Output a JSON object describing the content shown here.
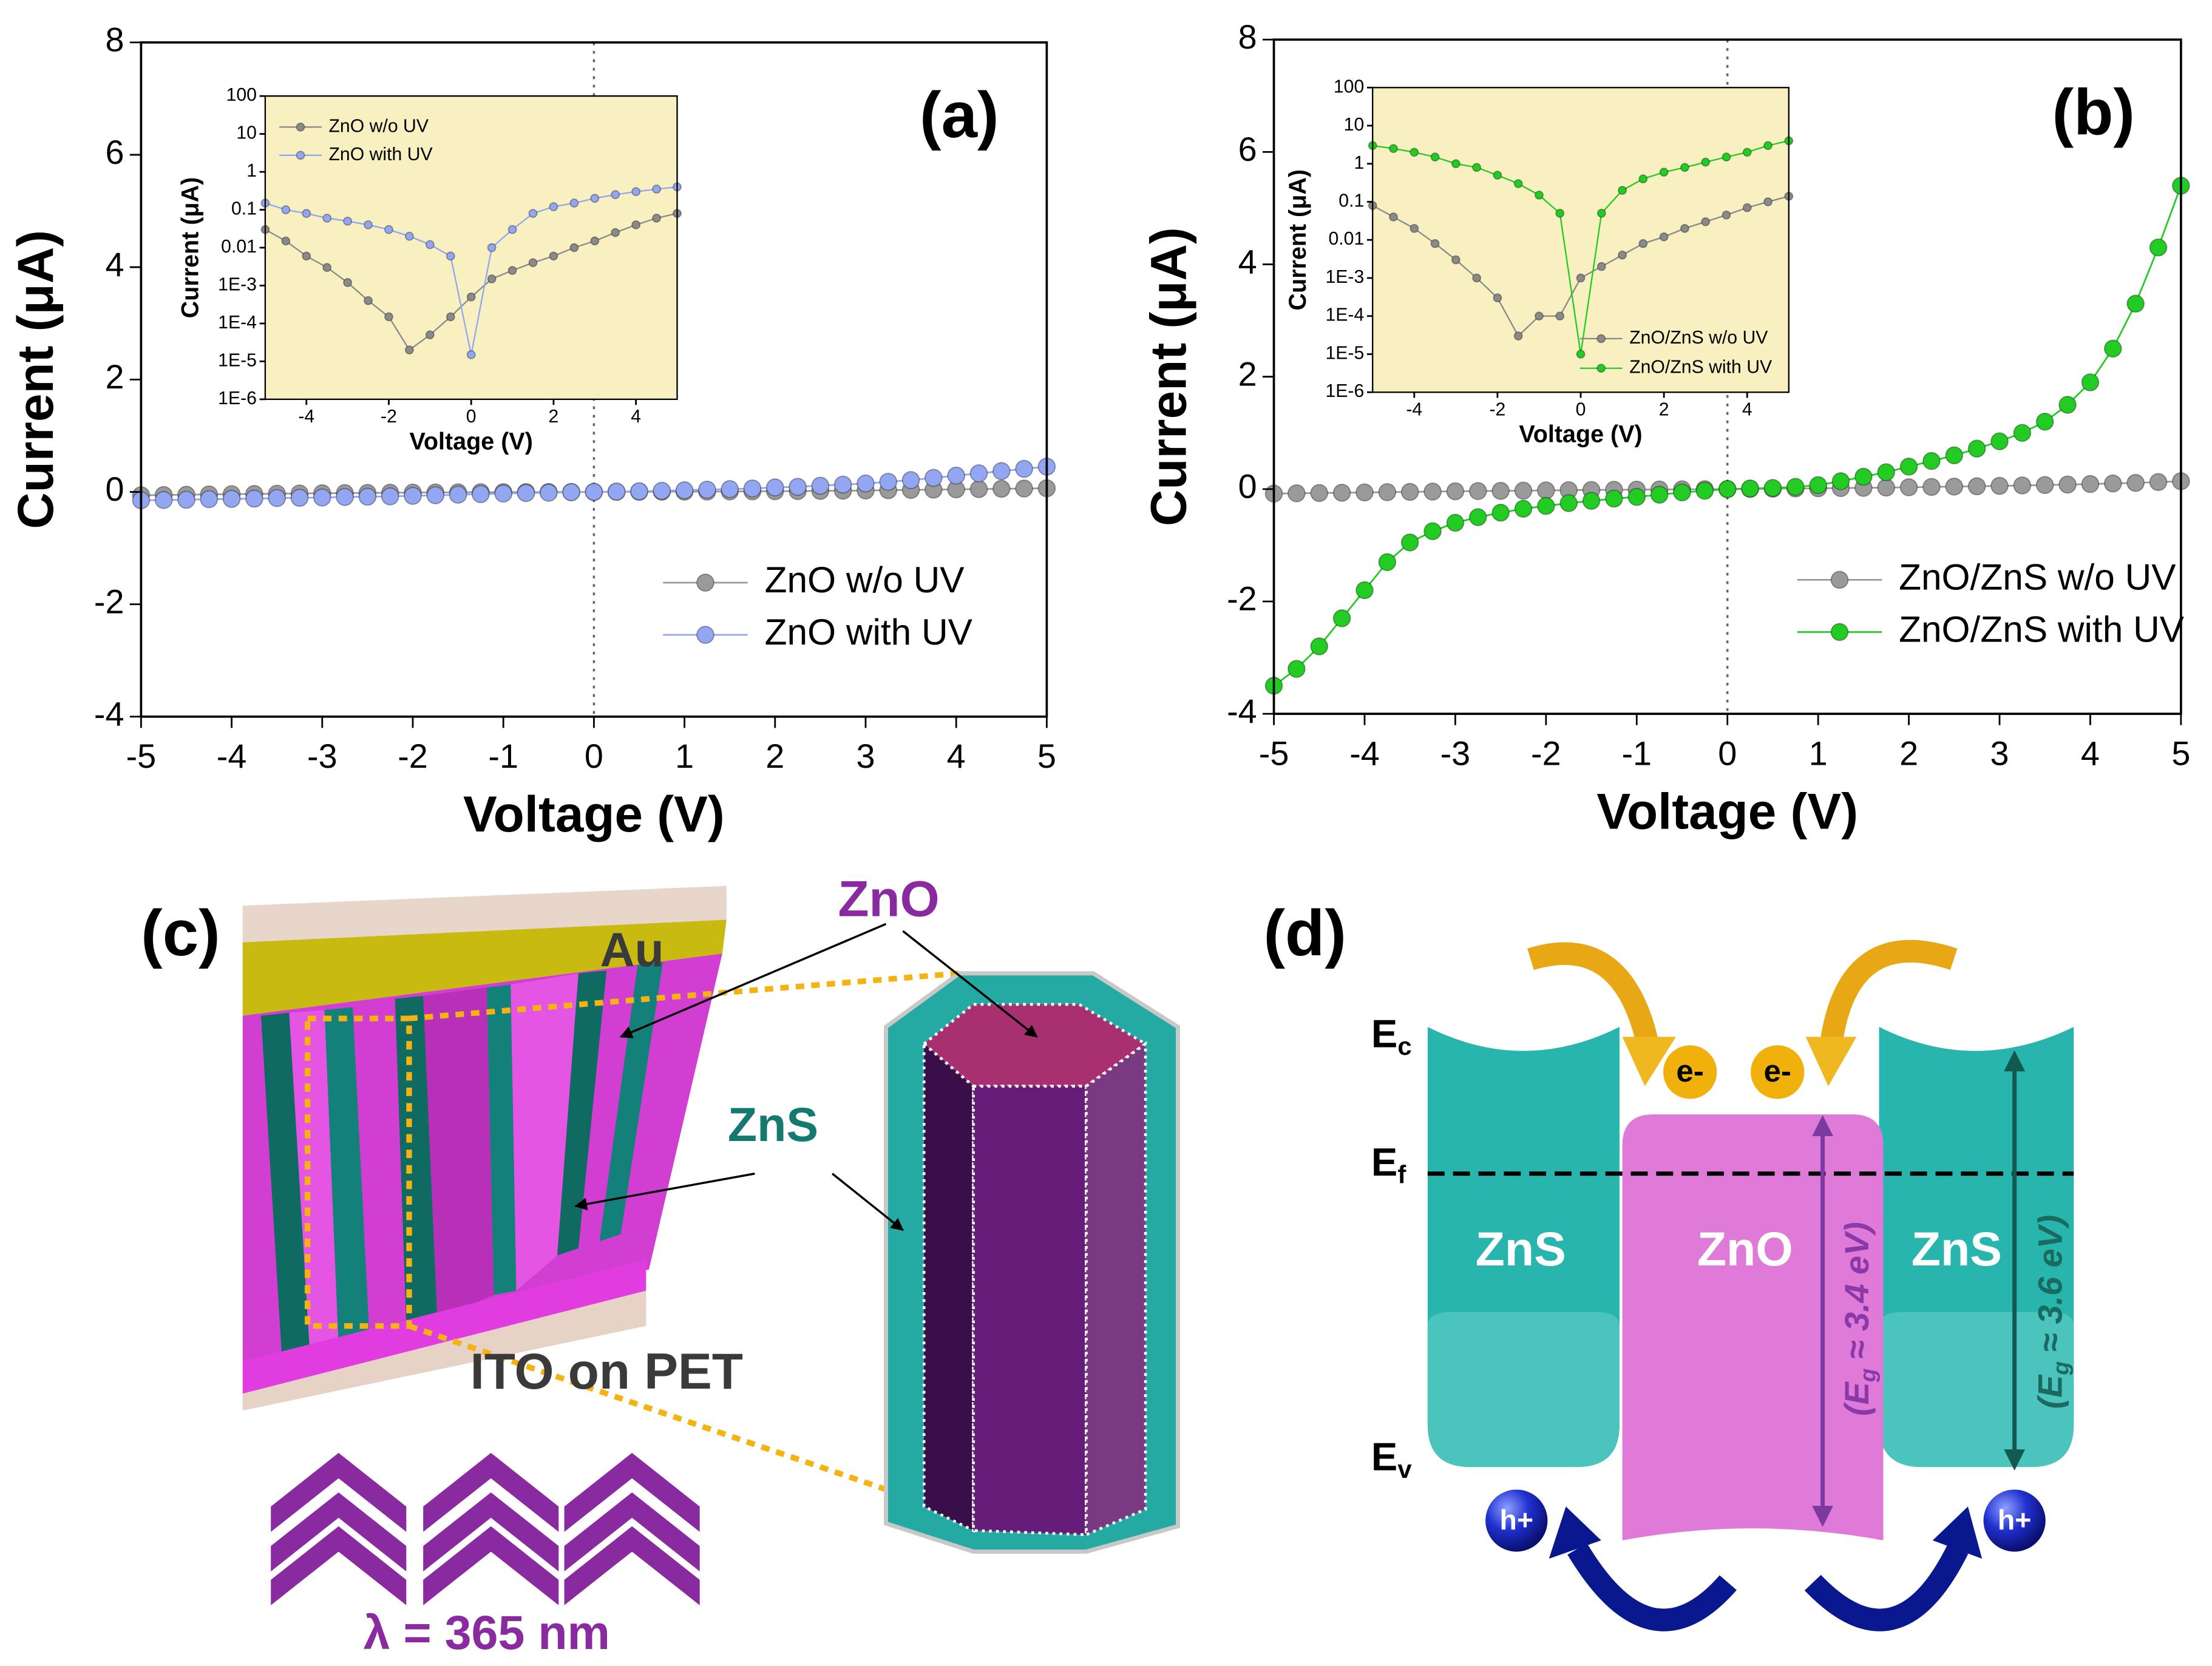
{
  "chart_data": [
    {
      "type": "line",
      "panel_label": "(a)",
      "xlabel": "Voltage (V)",
      "ylabel": "Current (μA)",
      "x": [
        -5,
        -4.75,
        -4.5,
        -4.25,
        -4,
        -3.75,
        -3.5,
        -3.25,
        -3,
        -2.75,
        -2.5,
        -2.25,
        -2,
        -1.75,
        -1.5,
        -1.25,
        -1,
        -0.75,
        -0.5,
        -0.25,
        0,
        0.25,
        0.5,
        0.75,
        1,
        1.25,
        1.5,
        1.75,
        2,
        2.25,
        2.5,
        2.75,
        3,
        3.25,
        3.5,
        3.75,
        4,
        4.25,
        4.5,
        4.75,
        5
      ],
      "series": [
        {
          "name": "ZnO w/o UV",
          "color": "#9a9a9a",
          "values": [
            -0.06,
            -0.055,
            -0.05,
            -0.045,
            -0.04,
            -0.036,
            -0.032,
            -0.028,
            -0.024,
            -0.021,
            -0.018,
            -0.015,
            -0.012,
            -0.01,
            -0.008,
            -0.006,
            -0.004,
            -0.003,
            -0.002,
            -0.001,
            0,
            0.001,
            0.002,
            0.003,
            0.004,
            0.006,
            0.008,
            0.01,
            0.012,
            0.015,
            0.018,
            0.021,
            0.025,
            0.03,
            0.035,
            0.04,
            0.045,
            0.05,
            0.055,
            0.06,
            0.065
          ]
        },
        {
          "name": "ZnO with UV",
          "color": "#93a6f2",
          "values": [
            -0.15,
            -0.145,
            -0.14,
            -0.13,
            -0.125,
            -0.12,
            -0.11,
            -0.105,
            -0.1,
            -0.09,
            -0.085,
            -0.08,
            -0.07,
            -0.06,
            -0.05,
            -0.04,
            -0.03,
            -0.02,
            -0.015,
            -0.005,
            0,
            0.005,
            0.01,
            0.02,
            0.03,
            0.04,
            0.05,
            0.06,
            0.08,
            0.09,
            0.11,
            0.13,
            0.15,
            0.18,
            0.21,
            0.25,
            0.29,
            0.33,
            0.37,
            0.41,
            0.45
          ]
        }
      ],
      "xlim": [
        -5,
        5
      ],
      "xticks": [
        -5,
        -4,
        -3,
        -2,
        -1,
        0,
        1,
        2,
        3,
        4,
        5
      ],
      "ylim": [
        -4,
        8
      ],
      "yticks": [
        -4,
        -2,
        0,
        2,
        4,
        6,
        8
      ],
      "vline": 0,
      "legend": "lower right"
    },
    {
      "type": "line",
      "xlabel": "Voltage (V)",
      "ylabel": "Current (μA)",
      "log_y": true,
      "background": "#f8f0c0",
      "x": [
        -5,
        -4.5,
        -4,
        -3.5,
        -3,
        -2.5,
        -2,
        -1.5,
        -1,
        -0.5,
        0,
        0.5,
        1,
        1.5,
        2,
        2.5,
        3,
        3.5,
        4,
        4.5,
        5
      ],
      "series": [
        {
          "name": "ZnO w/o UV",
          "color": "#8a8a8a",
          "values": [
            0.03,
            0.015,
            0.006,
            0.003,
            0.0012,
            0.0004,
            0.00015,
            2e-05,
            5e-05,
            0.00015,
            0.0005,
            0.0015,
            0.0025,
            0.004,
            0.006,
            0.01,
            0.015,
            0.025,
            0.04,
            0.06,
            0.08
          ]
        },
        {
          "name": "ZnO with UV",
          "color": "#93a6f2",
          "values": [
            0.15,
            0.1,
            0.08,
            0.06,
            0.05,
            0.04,
            0.03,
            0.02,
            0.012,
            0.006,
            1.5e-05,
            0.01,
            0.03,
            0.08,
            0.12,
            0.15,
            0.2,
            0.25,
            0.3,
            0.35,
            0.4
          ]
        }
      ],
      "xlim": [
        -5,
        5
      ],
      "xticks": [
        -4,
        -2,
        0,
        2,
        4
      ],
      "ylim": [
        1e-06,
        100
      ],
      "yticks": [
        {
          "value": 1e-06,
          "label": "1E-6"
        },
        {
          "value": 1e-05,
          "label": "1E-5"
        },
        {
          "value": 0.0001,
          "label": "1E-4"
        },
        {
          "value": 0.001,
          "label": "1E-3"
        },
        0.01,
        0.1,
        1,
        10,
        100
      ],
      "legend": "upper left"
    },
    {
      "type": "line",
      "panel_label": "(b)",
      "xlabel": "Voltage (V)",
      "ylabel": "Current (μA)",
      "x": [
        -5,
        -4.75,
        -4.5,
        -4.25,
        -4,
        -3.75,
        -3.5,
        -3.25,
        -3,
        -2.75,
        -2.5,
        -2.25,
        -2,
        -1.75,
        -1.5,
        -1.25,
        -1,
        -0.75,
        -0.5,
        -0.25,
        0,
        0.25,
        0.5,
        0.75,
        1,
        1.25,
        1.5,
        1.75,
        2,
        2.25,
        2.5,
        2.75,
        3,
        3.25,
        3.5,
        3.75,
        4,
        4.25,
        4.5,
        4.75,
        5
      ],
      "series": [
        {
          "name": "ZnO/ZnS w/o UV",
          "color": "#9a9a9a",
          "values": [
            -0.08,
            -0.075,
            -0.07,
            -0.065,
            -0.06,
            -0.055,
            -0.05,
            -0.045,
            -0.04,
            -0.036,
            -0.032,
            -0.028,
            -0.024,
            -0.02,
            -0.016,
            -0.013,
            -0.01,
            -0.007,
            -0.004,
            -0.002,
            0,
            0.003,
            0.006,
            0.01,
            0.014,
            0.018,
            0.022,
            0.027,
            0.032,
            0.038,
            0.044,
            0.05,
            0.057,
            0.064,
            0.072,
            0.08,
            0.09,
            0.1,
            0.11,
            0.125,
            0.14
          ]
        },
        {
          "name": "ZnO/ZnS with UV",
          "color": "#22cc22",
          "values": [
            -3.5,
            -3.2,
            -2.8,
            -2.3,
            -1.8,
            -1.3,
            -0.95,
            -0.75,
            -0.6,
            -0.5,
            -0.42,
            -0.35,
            -0.3,
            -0.25,
            -0.21,
            -0.17,
            -0.14,
            -0.1,
            -0.06,
            -0.03,
            0,
            0.01,
            0.02,
            0.04,
            0.07,
            0.14,
            0.22,
            0.3,
            0.4,
            0.5,
            0.6,
            0.72,
            0.85,
            1.0,
            1.2,
            1.5,
            1.9,
            2.5,
            3.3,
            4.3,
            5.4
          ]
        }
      ],
      "xlim": [
        -5,
        5
      ],
      "xticks": [
        -5,
        -4,
        -3,
        -2,
        -1,
        0,
        1,
        2,
        3,
        4,
        5
      ],
      "ylim": [
        -4,
        8
      ],
      "yticks": [
        -4,
        -2,
        0,
        2,
        4,
        6,
        8
      ],
      "vline": 0,
      "legend": "lower right"
    },
    {
      "type": "line",
      "xlabel": "Voltage (V)",
      "ylabel": "Current (μA)",
      "log_y": true,
      "background": "#f8f0c0",
      "x": [
        -5,
        -4.5,
        -4,
        -3.5,
        -3,
        -2.5,
        -2,
        -1.5,
        -1,
        -0.5,
        0,
        0.5,
        1,
        1.5,
        2,
        2.5,
        3,
        3.5,
        4,
        4.5,
        5
      ],
      "series": [
        {
          "name": "ZnO/ZnS w/o UV",
          "color": "#8a8a8a",
          "values": [
            0.08,
            0.04,
            0.02,
            0.008,
            0.003,
            0.001,
            0.0003,
            3e-05,
            0.0001,
            0.0001,
            0.001,
            0.002,
            0.004,
            0.008,
            0.012,
            0.02,
            0.03,
            0.045,
            0.07,
            0.1,
            0.14
          ]
        },
        {
          "name": "ZnO/ZnS with UV",
          "color": "#22cc22",
          "values": [
            3,
            2.5,
            2,
            1.5,
            1,
            0.8,
            0.5,
            0.3,
            0.15,
            0.05,
            1e-05,
            0.05,
            0.2,
            0.4,
            0.6,
            0.8,
            1.1,
            1.5,
            2,
            3,
            4
          ]
        }
      ],
      "xlim": [
        -5,
        5
      ],
      "xticks": [
        -4,
        -2,
        0,
        2,
        4
      ],
      "ylim": [
        1e-06,
        100
      ],
      "yticks": [
        {
          "value": 1e-06,
          "label": "1E-6"
        },
        {
          "value": 1e-05,
          "label": "1E-5"
        },
        {
          "value": 0.0001,
          "label": "1E-4"
        },
        {
          "value": 0.001,
          "label": "1E-3"
        },
        0.01,
        0.1,
        1,
        10,
        100
      ],
      "legend": "lower right"
    }
  ],
  "diagram_c": {
    "label": "(c)",
    "zno": "ZnO",
    "au": "Au",
    "zns": "ZnS",
    "substrate": "ITO on PET",
    "wavelength": "λ = 365 nm"
  },
  "diagram_d": {
    "label": "(d)",
    "ec": {
      "base": "E",
      "sub": "c"
    },
    "ef": {
      "base": "E",
      "sub": "f"
    },
    "ev": {
      "base": "E",
      "sub": "v"
    },
    "electrons": [
      "e-",
      "e-"
    ],
    "layers": [
      "ZnS",
      "ZnO",
      "ZnS"
    ],
    "holes": [
      "h+",
      "h+"
    ],
    "gap_zno": {
      "open": "(E",
      "sub": "g",
      "close": " ≈ 3.4 eV)"
    },
    "gap_zns": {
      "open": "(E",
      "sub": "g",
      "close": " ≈ 3.6 eV)"
    }
  }
}
